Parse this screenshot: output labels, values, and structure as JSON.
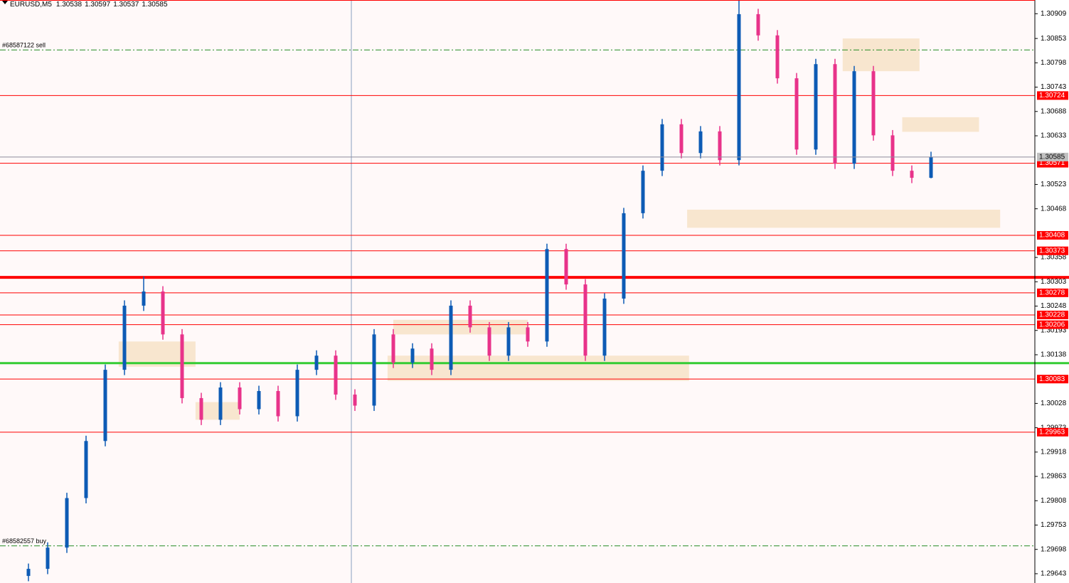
{
  "chart_data": {
    "type": "candlestick",
    "title": "EURUSD,M5",
    "up_color": "#0d5bb5",
    "down_color": "#e8338a",
    "ylim": [
      1.29622,
      1.3094
    ],
    "yticks": [
      1.29643,
      1.29698,
      1.29753,
      1.29808,
      1.29863,
      1.29918,
      1.29973,
      1.30028,
      1.30138,
      1.30193,
      1.30248,
      1.30303,
      1.30358,
      1.30468,
      1.30523,
      1.30633,
      1.30688,
      1.30743,
      1.30798,
      1.30853,
      1.30909
    ],
    "open": [
      1.29638,
      1.29654,
      1.29702,
      1.29814,
      1.29943,
      1.30104,
      1.30249,
      1.30281,
      1.30184,
      1.3004,
      1.29991,
      1.30064,
      1.30015,
      1.30056,
      1.29999,
      1.30104,
      1.30136,
      1.30048,
      1.30023,
      1.30184,
      1.3012,
      1.30152,
      1.30104,
      1.30249,
      1.302,
      1.30136,
      1.302,
      1.30168,
      1.30377,
      1.30297,
      1.30136,
      1.30265,
      1.30458,
      1.30554,
      1.30659,
      1.30594,
      1.30643,
      1.30578,
      1.30908,
      1.3086,
      1.30763,
      1.30602,
      1.30795,
      1.3057,
      1.30779,
      1.30634,
      1.30554,
      1.30538
    ],
    "high": [
      1.29666,
      1.29714,
      1.29826,
      1.29955,
      1.30116,
      1.30261,
      1.30315,
      1.30293,
      1.30196,
      1.30052,
      1.30076,
      1.30076,
      1.30068,
      1.30068,
      1.30116,
      1.30148,
      1.30148,
      1.3006,
      1.30196,
      1.30196,
      1.30164,
      1.30164,
      1.30261,
      1.30261,
      1.30212,
      1.30212,
      1.30212,
      1.30389,
      1.30389,
      1.30309,
      1.30277,
      1.3047,
      1.30566,
      1.30671,
      1.30671,
      1.30655,
      1.30655,
      1.3094,
      1.3092,
      1.30872,
      1.30775,
      1.30807,
      1.30807,
      1.30791,
      1.30791,
      1.30646,
      1.30566,
      1.30597
    ],
    "low": [
      1.29626,
      1.29642,
      1.2969,
      1.29802,
      1.29931,
      1.30092,
      1.30237,
      1.30172,
      1.30028,
      1.29979,
      1.29979,
      1.30003,
      1.30003,
      1.29987,
      1.29987,
      1.30092,
      1.30036,
      1.30011,
      1.30011,
      1.30108,
      1.30108,
      1.30092,
      1.30092,
      1.30188,
      1.30124,
      1.30124,
      1.30156,
      1.30156,
      1.30285,
      1.30124,
      1.30124,
      1.30253,
      1.30446,
      1.30542,
      1.30582,
      1.30582,
      1.30566,
      1.30566,
      1.30848,
      1.30751,
      1.3059,
      1.3059,
      1.30558,
      1.30558,
      1.30622,
      1.30542,
      1.30526,
      1.30537
    ],
    "close": [
      1.29654,
      1.29702,
      1.29814,
      1.29943,
      1.30104,
      1.30249,
      1.30281,
      1.30184,
      1.3004,
      1.29991,
      1.30064,
      1.30015,
      1.30056,
      1.29999,
      1.30104,
      1.30136,
      1.30048,
      1.30023,
      1.30184,
      1.3012,
      1.30152,
      1.30104,
      1.30249,
      1.302,
      1.30136,
      1.302,
      1.30168,
      1.30377,
      1.30297,
      1.30136,
      1.30265,
      1.30458,
      1.30554,
      1.30659,
      1.30594,
      1.30643,
      1.30578,
      1.30908,
      1.3086,
      1.30763,
      1.30602,
      1.30795,
      1.3057,
      1.30779,
      1.30634,
      1.30554,
      1.30538,
      1.30585
    ],
    "levels": [
      1.30724,
      1.30571,
      1.30408,
      1.30373,
      1.30278,
      1.30228,
      1.30206,
      1.30083,
      1.29963
    ],
    "level_color": "#ff0000",
    "lines": [
      {
        "value": 1.30313,
        "color": "#ff0000",
        "width": 4
      },
      {
        "value": 1.30119,
        "color": "#33cc33",
        "width": 3
      }
    ],
    "orders": [
      {
        "label": "#68587122 sell",
        "value": 1.30827
      },
      {
        "label": "#68582557 buy",
        "value": 1.29706
      }
    ],
    "order_color": "#228b22",
    "zones": [
      {
        "x": [
          4.7,
          8.7
        ],
        "y": [
          1.30111,
          1.30168
        ]
      },
      {
        "x": [
          8.7,
          11
        ],
        "y": [
          1.29991,
          1.30031
        ]
      },
      {
        "x": [
          18.7,
          34.4
        ],
        "y": [
          1.30079,
          1.30136
        ]
      },
      {
        "x": [
          19,
          26
        ],
        "y": [
          1.30184,
          1.30217
        ]
      },
      {
        "x": [
          34.3,
          50.6
        ],
        "y": [
          1.30425,
          1.30466
        ]
      },
      {
        "x": [
          42.4,
          46.4
        ],
        "y": [
          1.30779,
          1.30853
        ]
      },
      {
        "x": [
          45.5,
          49.5
        ],
        "y": [
          1.30642,
          1.30675
        ]
      }
    ],
    "zone_color": "#f7e3c8"
  }
}
